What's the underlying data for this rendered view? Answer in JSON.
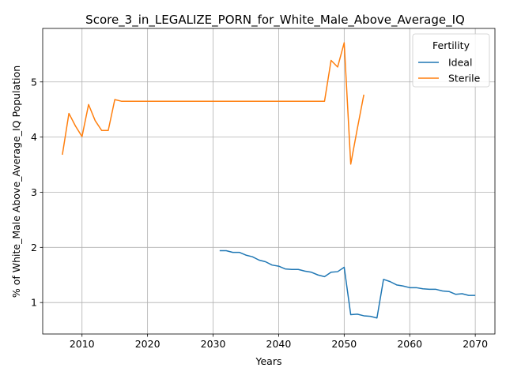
{
  "chart_data": {
    "type": "line",
    "title": "Score_3_in_LEGALIZE_PORN_for_White_Male_Above_Average_IQ",
    "xlabel": "Years",
    "ylabel": "% of White_Male Above_Average_IQ Population",
    "xlim": [
      2004,
      2073
    ],
    "ylim": [
      0.43,
      5.97
    ],
    "xticks": [
      2010,
      2020,
      2030,
      2040,
      2050,
      2060,
      2070
    ],
    "yticks": [
      1,
      2,
      3,
      4,
      5
    ],
    "grid": true,
    "legend": {
      "title": "Fertility",
      "placement": "top-right"
    },
    "series": [
      {
        "name": "Ideal",
        "color": "#1f77b4",
        "x": [
          2031,
          2032,
          2033,
          2034,
          2035,
          2036,
          2037,
          2038,
          2039,
          2040,
          2041,
          2042,
          2043,
          2044,
          2045,
          2046,
          2047,
          2048,
          2049,
          2050,
          2051,
          2052,
          2053,
          2054,
          2055,
          2056,
          2057,
          2058,
          2059,
          2060,
          2061,
          2062,
          2063,
          2064,
          2065,
          2066,
          2067,
          2068,
          2069,
          2070
        ],
        "y": [
          1.94,
          1.94,
          1.91,
          1.91,
          1.86,
          1.83,
          1.77,
          1.74,
          1.68,
          1.66,
          1.61,
          1.6,
          1.6,
          1.57,
          1.55,
          1.5,
          1.47,
          1.55,
          1.56,
          1.64,
          0.78,
          0.79,
          0.76,
          0.75,
          0.72,
          1.42,
          1.38,
          1.32,
          1.3,
          1.27,
          1.27,
          1.25,
          1.24,
          1.24,
          1.21,
          1.2,
          1.15,
          1.16,
          1.13,
          1.13
        ]
      },
      {
        "name": "Sterile",
        "color": "#ff7f0e",
        "x": [
          2007,
          2008,
          2009,
          2010,
          2011,
          2012,
          2013,
          2014,
          2015,
          2016,
          2017,
          2018,
          2019,
          2020,
          2021,
          2022,
          2023,
          2024,
          2025,
          2026,
          2027,
          2028,
          2029,
          2030,
          2031,
          2032,
          2033,
          2034,
          2035,
          2036,
          2037,
          2038,
          2039,
          2040,
          2041,
          2042,
          2043,
          2044,
          2045,
          2046,
          2047,
          2048,
          2049,
          2050,
          2051,
          2052,
          2053
        ],
        "y": [
          3.68,
          4.43,
          4.2,
          4.01,
          4.59,
          4.3,
          4.12,
          4.12,
          4.68,
          4.65,
          4.65,
          4.65,
          4.65,
          4.65,
          4.65,
          4.65,
          4.65,
          4.65,
          4.65,
          4.65,
          4.65,
          4.65,
          4.65,
          4.65,
          4.65,
          4.65,
          4.65,
          4.65,
          4.65,
          4.65,
          4.65,
          4.65,
          4.65,
          4.65,
          4.65,
          4.65,
          4.65,
          4.65,
          4.65,
          4.65,
          4.65,
          5.39,
          5.27,
          5.71,
          3.51,
          4.15,
          4.77
        ]
      }
    ]
  }
}
